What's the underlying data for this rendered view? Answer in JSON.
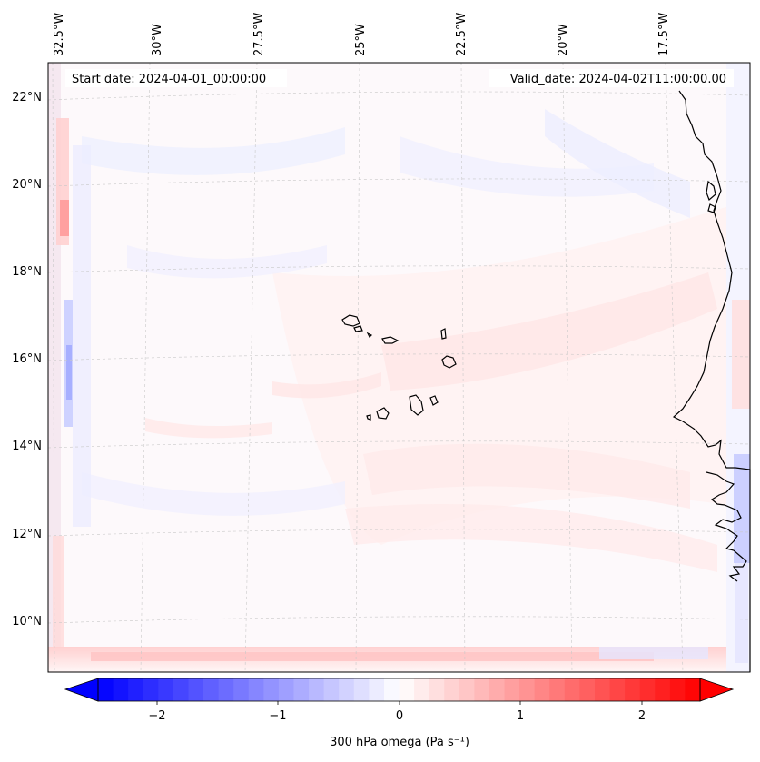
{
  "header": {
    "start_date": "Start date: 2024-04-01_00:00:00",
    "valid_date": "Valid_date: 2024-04-02T11:00:00.00"
  },
  "map": {
    "top_labels": [
      "32.5°W",
      "30°W",
      "27.5°W",
      "25°W",
      "22.5°W",
      "20°W",
      "17.5°W"
    ],
    "left_labels": [
      "22°N",
      "20°N",
      "18°N",
      "16°N",
      "14°N",
      "12°N",
      "10°N"
    ]
  },
  "colorbar": {
    "label": "300 hPa omega (Pa s⁻¹)",
    "ticks": [
      "−2",
      "−1",
      "0",
      "1",
      "2"
    ],
    "min": -2.6,
    "max": 2.6,
    "colors": {
      "low": "#0000ff",
      "mid": "#ffffff",
      "high": "#ff0000"
    }
  }
}
